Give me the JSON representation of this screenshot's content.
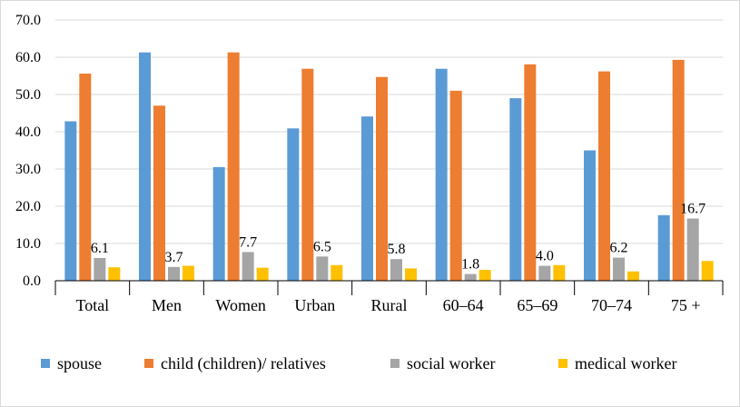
{
  "chart_data": {
    "type": "bar",
    "title": "",
    "xlabel": "",
    "ylabel": "",
    "ylim": [
      0,
      70
    ],
    "y_ticks": [
      "0.0",
      "10.0",
      "20.0",
      "30.0",
      "40.0",
      "50.0",
      "60.0",
      "70.0"
    ],
    "grid": true,
    "legend_position": "bottom",
    "categories": [
      "Total",
      "Men",
      "Women",
      "Urban",
      "Rural",
      "60–64",
      "65–69",
      "70–74",
      "75 +"
    ],
    "series": [
      {
        "name": "spouse",
        "color": "#5B9BD5",
        "values": [
          42.8,
          61.3,
          30.5,
          40.9,
          44.1,
          56.9,
          49.0,
          35.0,
          17.6
        ]
      },
      {
        "name": "child (children)/ relatives",
        "color": "#ED7D31",
        "values": [
          55.6,
          47.0,
          61.3,
          56.9,
          54.7,
          51.0,
          58.1,
          56.2,
          59.3
        ]
      },
      {
        "name": "social worker",
        "color": "#A5A5A5",
        "values": [
          6.1,
          3.7,
          7.7,
          6.5,
          5.8,
          1.8,
          4.0,
          6.2,
          16.7
        ]
      },
      {
        "name": "medical worker",
        "color": "#FFC000",
        "values": [
          3.6,
          4.0,
          3.5,
          4.2,
          3.3,
          2.9,
          4.2,
          2.5,
          5.3
        ]
      }
    ],
    "data_labels": {
      "series": "social worker",
      "texts": [
        "6.1",
        "3.7",
        "7.7",
        "6.5",
        "5.8",
        "1.8",
        "4.0",
        "6.2",
        "16.7"
      ]
    }
  }
}
